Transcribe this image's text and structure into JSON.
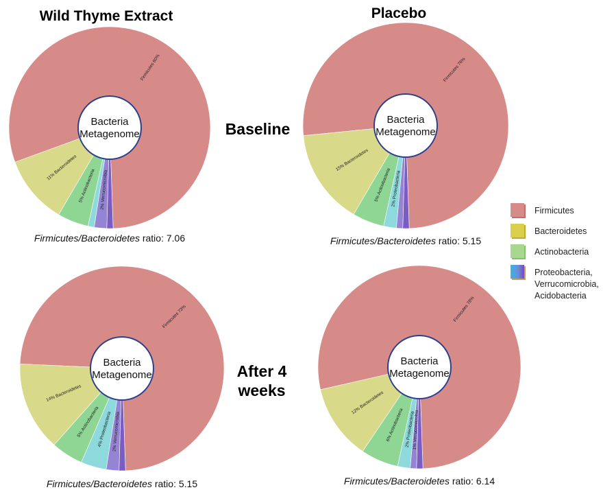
{
  "colors": {
    "firmicutes": "#d78b89",
    "bacteroidetes": "#d9d98a",
    "actinobacteria": "#8fd694",
    "proteobacteria": "#8dd9dc",
    "verrucomicrobia": "#9583d4",
    "acidobacteria": "#7a5cc4",
    "center_ring": "#2c3f8c"
  },
  "headers": {
    "col_left": "Wild Thyme Extract",
    "col_right": "Placebo",
    "row_top": "Baseline",
    "row_bottom_line1": "After 4",
    "row_bottom_line2": "weeks"
  },
  "center_label": {
    "line1": "Bacteria",
    "line2": "Metagenome"
  },
  "legend": [
    {
      "lines": [
        "Firmicutes"
      ],
      "icon": "firmicutes-swatch-icon"
    },
    {
      "lines": [
        "Bacteroidetes"
      ],
      "icon": "bacteroidetes-swatch-icon"
    },
    {
      "lines": [
        "Actinobacteria"
      ],
      "icon": "actinobacteria-swatch-icon"
    },
    {
      "lines": [
        "Proteobacteria,",
        "Verrucomicrobia,",
        "Acidobacteria"
      ],
      "icon": "other-phyla-swatch-icon"
    }
  ],
  "chart_data": [
    {
      "type": "pie",
      "group": "Wild Thyme Extract",
      "timepoint": "Baseline",
      "ratio_label_italic": "Firmicutes/Bacteroidetes",
      "ratio_label_rest": " ratio: 7.06",
      "slices": [
        {
          "key": "firmicutes",
          "name": "Firmicutes",
          "value": 80,
          "label": "Firmicutes   80%"
        },
        {
          "key": "bacteroidetes",
          "name": "Bacteroidetes",
          "value": 11,
          "label": "11%   Bacteroidetes"
        },
        {
          "key": "actinobacteria",
          "name": "Actinobacteria",
          "value": 5,
          "label": "5%   Actinobacteria"
        },
        {
          "key": "proteobacteria",
          "name": "Proteobacteria",
          "value": 1,
          "label": ""
        },
        {
          "key": "verrucomicrobia",
          "name": "Verrucomicrobia",
          "value": 2,
          "label": "2%   Verrucomicrobia"
        },
        {
          "key": "acidobacteria",
          "name": "Acidobacteria",
          "value": 1,
          "label": ""
        }
      ]
    },
    {
      "type": "pie",
      "group": "Placebo",
      "timepoint": "Baseline",
      "ratio_label_italic": "Firmicutes/Bacteroidetes",
      "ratio_label_rest": " ratio: 5.15",
      "slices": [
        {
          "key": "firmicutes",
          "name": "Firmicutes",
          "value": 76,
          "label": "Firmicutes   76%"
        },
        {
          "key": "bacteroidetes",
          "name": "Bacteroidetes",
          "value": 15,
          "label": "15%   Bacteroidetes"
        },
        {
          "key": "actinobacteria",
          "name": "Actinobacteria",
          "value": 5,
          "label": "5%   Actinobacteria"
        },
        {
          "key": "proteobacteria",
          "name": "Proteobacteria",
          "value": 2,
          "label": "2%   Proteobacteria"
        },
        {
          "key": "verrucomicrobia",
          "name": "Verrucomicrobia",
          "value": 1,
          "label": ""
        },
        {
          "key": "acidobacteria",
          "name": "Acidobacteria",
          "value": 1,
          "label": ""
        }
      ]
    },
    {
      "type": "pie",
      "group": "Wild Thyme Extract",
      "timepoint": "After 4 weeks",
      "ratio_label_italic": "Firmicutes/Bacteroidetes",
      "ratio_label_rest": " ratio: 5.15",
      "slices": [
        {
          "key": "firmicutes",
          "name": "Firmicutes",
          "value": 73,
          "label": "Firmicutes   73%"
        },
        {
          "key": "bacteroidetes",
          "name": "Bacteroidetes",
          "value": 14,
          "label": "14%   Bacteroidetes"
        },
        {
          "key": "actinobacteria",
          "name": "Actinobacteria",
          "value": 5,
          "label": "5%   Actinobacteria"
        },
        {
          "key": "proteobacteria",
          "name": "Proteobacteria",
          "value": 4,
          "label": "4%   Proteobacteria"
        },
        {
          "key": "verrucomicrobia",
          "name": "Verrucomicrobia",
          "value": 2,
          "label": "2%   Verrucomicrobia"
        },
        {
          "key": "acidobacteria",
          "name": "Acidobacteria",
          "value": 1,
          "label": ""
        }
      ]
    },
    {
      "type": "pie",
      "group": "Placebo",
      "timepoint": "After 4 weeks",
      "ratio_label_italic": "Firmicutes/Bacteroidetes",
      "ratio_label_rest": " ratio: 6.14",
      "slices": [
        {
          "key": "firmicutes",
          "name": "Firmicutes",
          "value": 78,
          "label": "Firmicutes   78%"
        },
        {
          "key": "bacteroidetes",
          "name": "Bacteroidetes",
          "value": 12,
          "label": "12%   Bacteroidetes"
        },
        {
          "key": "actinobacteria",
          "name": "Actinobacteria",
          "value": 6,
          "label": "6%   Actinobacteria"
        },
        {
          "key": "proteobacteria",
          "name": "Proteobacteria",
          "value": 2,
          "label": "2%   Proteobacteria"
        },
        {
          "key": "verrucomicrobia",
          "name": "Verrucomicrobia",
          "value": 1,
          "label": "1%   Verrucomicrobia"
        },
        {
          "key": "acidobacteria",
          "name": "Acidobacteria",
          "value": 1,
          "label": ""
        }
      ]
    }
  ]
}
